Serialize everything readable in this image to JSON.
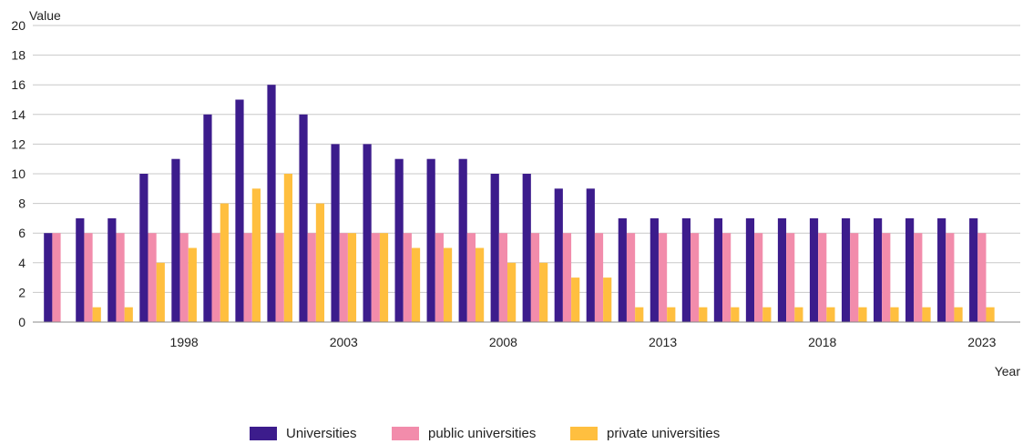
{
  "chart_data": {
    "type": "bar",
    "title": "",
    "xlabel": "Year",
    "ylabel": "Value",
    "ylim": [
      0,
      20
    ],
    "yticks": [
      0,
      2,
      4,
      6,
      8,
      10,
      12,
      14,
      16,
      18,
      20
    ],
    "ytick_labels": [
      "0",
      "2",
      "4",
      "6",
      "8",
      "10",
      "12",
      "14",
      "16",
      "18",
      "20"
    ],
    "categories": [
      1994,
      1995,
      1996,
      1997,
      1998,
      1999,
      2000,
      2001,
      2002,
      2003,
      2004,
      2005,
      2006,
      2007,
      2008,
      2009,
      2010,
      2011,
      2012,
      2013,
      2014,
      2015,
      2016,
      2017,
      2018,
      2019,
      2020,
      2021,
      2022,
      2023
    ],
    "xtick_labels": [
      "1998",
      "2003",
      "2008",
      "2013",
      "2018",
      "2023"
    ],
    "grid": "horizontal",
    "legend_position": "bottom-center",
    "series": [
      {
        "name": "Universities",
        "color": "#3c1c8c",
        "values": [
          6,
          7,
          7,
          10,
          11,
          14,
          15,
          16,
          14,
          12,
          12,
          11,
          11,
          11,
          10,
          10,
          9,
          9,
          7,
          7,
          7,
          7,
          7,
          7,
          7,
          7,
          7,
          7,
          7,
          7
        ]
      },
      {
        "name": "public universities",
        "color": "#f28cab",
        "values": [
          6,
          6,
          6,
          6,
          6,
          6,
          6,
          6,
          6,
          6,
          6,
          6,
          6,
          6,
          6,
          6,
          6,
          6,
          6,
          6,
          6,
          6,
          6,
          6,
          6,
          6,
          6,
          6,
          6,
          6
        ]
      },
      {
        "name": "private universities",
        "color": "#ffbf3f",
        "values": [
          0,
          1,
          1,
          4,
          5,
          8,
          9,
          10,
          8,
          6,
          6,
          5,
          5,
          5,
          4,
          4,
          3,
          3,
          1,
          1,
          1,
          1,
          1,
          1,
          1,
          1,
          1,
          1,
          1,
          1
        ]
      }
    ]
  }
}
